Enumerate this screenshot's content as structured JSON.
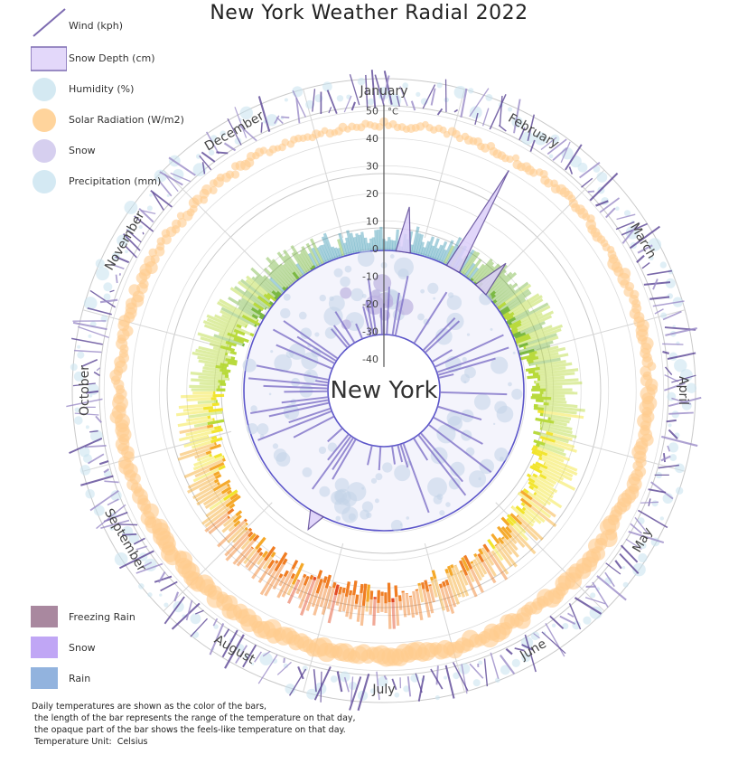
{
  "chart_data": {
    "type": "radial",
    "title": "New York Weather Radial 2022",
    "center_label": "New York",
    "temperature_axis": {
      "unit": "°C",
      "ticks": [
        "50",
        "40",
        "30",
        "20",
        "10",
        "0",
        "-10",
        "-20",
        "-30",
        "-40"
      ],
      "range": [
        -45,
        55
      ]
    },
    "months": [
      "January",
      "February",
      "March",
      "April",
      "May",
      "June",
      "July",
      "August",
      "September",
      "October",
      "November",
      "December"
    ],
    "monthly_temperature_c": [
      {
        "month": "January",
        "min": -8,
        "max": 4,
        "feels": -12
      },
      {
        "month": "February",
        "min": -4,
        "max": 7,
        "feels": -8
      },
      {
        "month": "March",
        "min": 1,
        "max": 12,
        "feels": -2
      },
      {
        "month": "April",
        "min": 6,
        "max": 17,
        "feels": 4
      },
      {
        "month": "May",
        "min": 12,
        "max": 23,
        "feels": 11
      },
      {
        "month": "June",
        "min": 17,
        "max": 27,
        "feels": 17
      },
      {
        "month": "July",
        "min": 22,
        "max": 32,
        "feels": 24
      },
      {
        "month": "August",
        "min": 21,
        "max": 31,
        "feels": 23
      },
      {
        "month": "September",
        "min": 16,
        "max": 26,
        "feels": 16
      },
      {
        "month": "October",
        "min": 9,
        "max": 19,
        "feels": 8
      },
      {
        "month": "November",
        "min": 3,
        "max": 13,
        "feels": 1
      },
      {
        "month": "December",
        "min": -3,
        "max": 7,
        "feels": -6
      }
    ],
    "snow_depth_peaks_cm": [
      {
        "date": "January 8",
        "value": 10
      },
      {
        "date": "January 30",
        "value": 25
      },
      {
        "date": "February 14",
        "value": 8
      },
      {
        "date": "July 29",
        "value": 4
      }
    ],
    "legend_top": [
      {
        "label": "Wind (kph)",
        "icon": "wind-line-icon",
        "color": "#7d6bb1"
      },
      {
        "label": "Snow Depth (cm)",
        "icon": "snow-depth-area-icon",
        "color": "#d9cdf6"
      },
      {
        "label": "Humidity (%)",
        "icon": "humidity-bubble-icon",
        "color": "#cde6f0"
      },
      {
        "label": "Solar Radiation (W/m2)",
        "icon": "solar-bubble-icon",
        "color": "#ffd49c"
      },
      {
        "label": "Snow",
        "icon": "snow-bubble-icon",
        "color": "#cfc7ec"
      },
      {
        "label": "Precipitation (mm)",
        "icon": "precipitation-bubble-icon",
        "color": "#cfe5f1"
      }
    ],
    "legend_bottom": [
      {
        "label": "Freezing Rain",
        "icon": "freezing-rain-square-icon",
        "color": "#a9889f"
      },
      {
        "label": "Snow",
        "icon": "snow-square-icon",
        "color": "#c0a6f5"
      },
      {
        "label": "Rain",
        "icon": "rain-square-icon",
        "color": "#92b3de"
      }
    ],
    "colors": {
      "wind": "#5b4596",
      "solar": "#ffcf94",
      "humidity": "#d3e9f2",
      "inner_circle": "#5b55c9",
      "grid": "#cccccc"
    }
  },
  "footnote": {
    "line1": "Daily temperatures are shown as the color of the bars,",
    "line2": " the length of the bar represents the range of the temperature on that day,",
    "line3": " the opaque part of the bar shows the feels-like temperature on that day.",
    "line4": " Temperature Unit:  Celsius"
  }
}
